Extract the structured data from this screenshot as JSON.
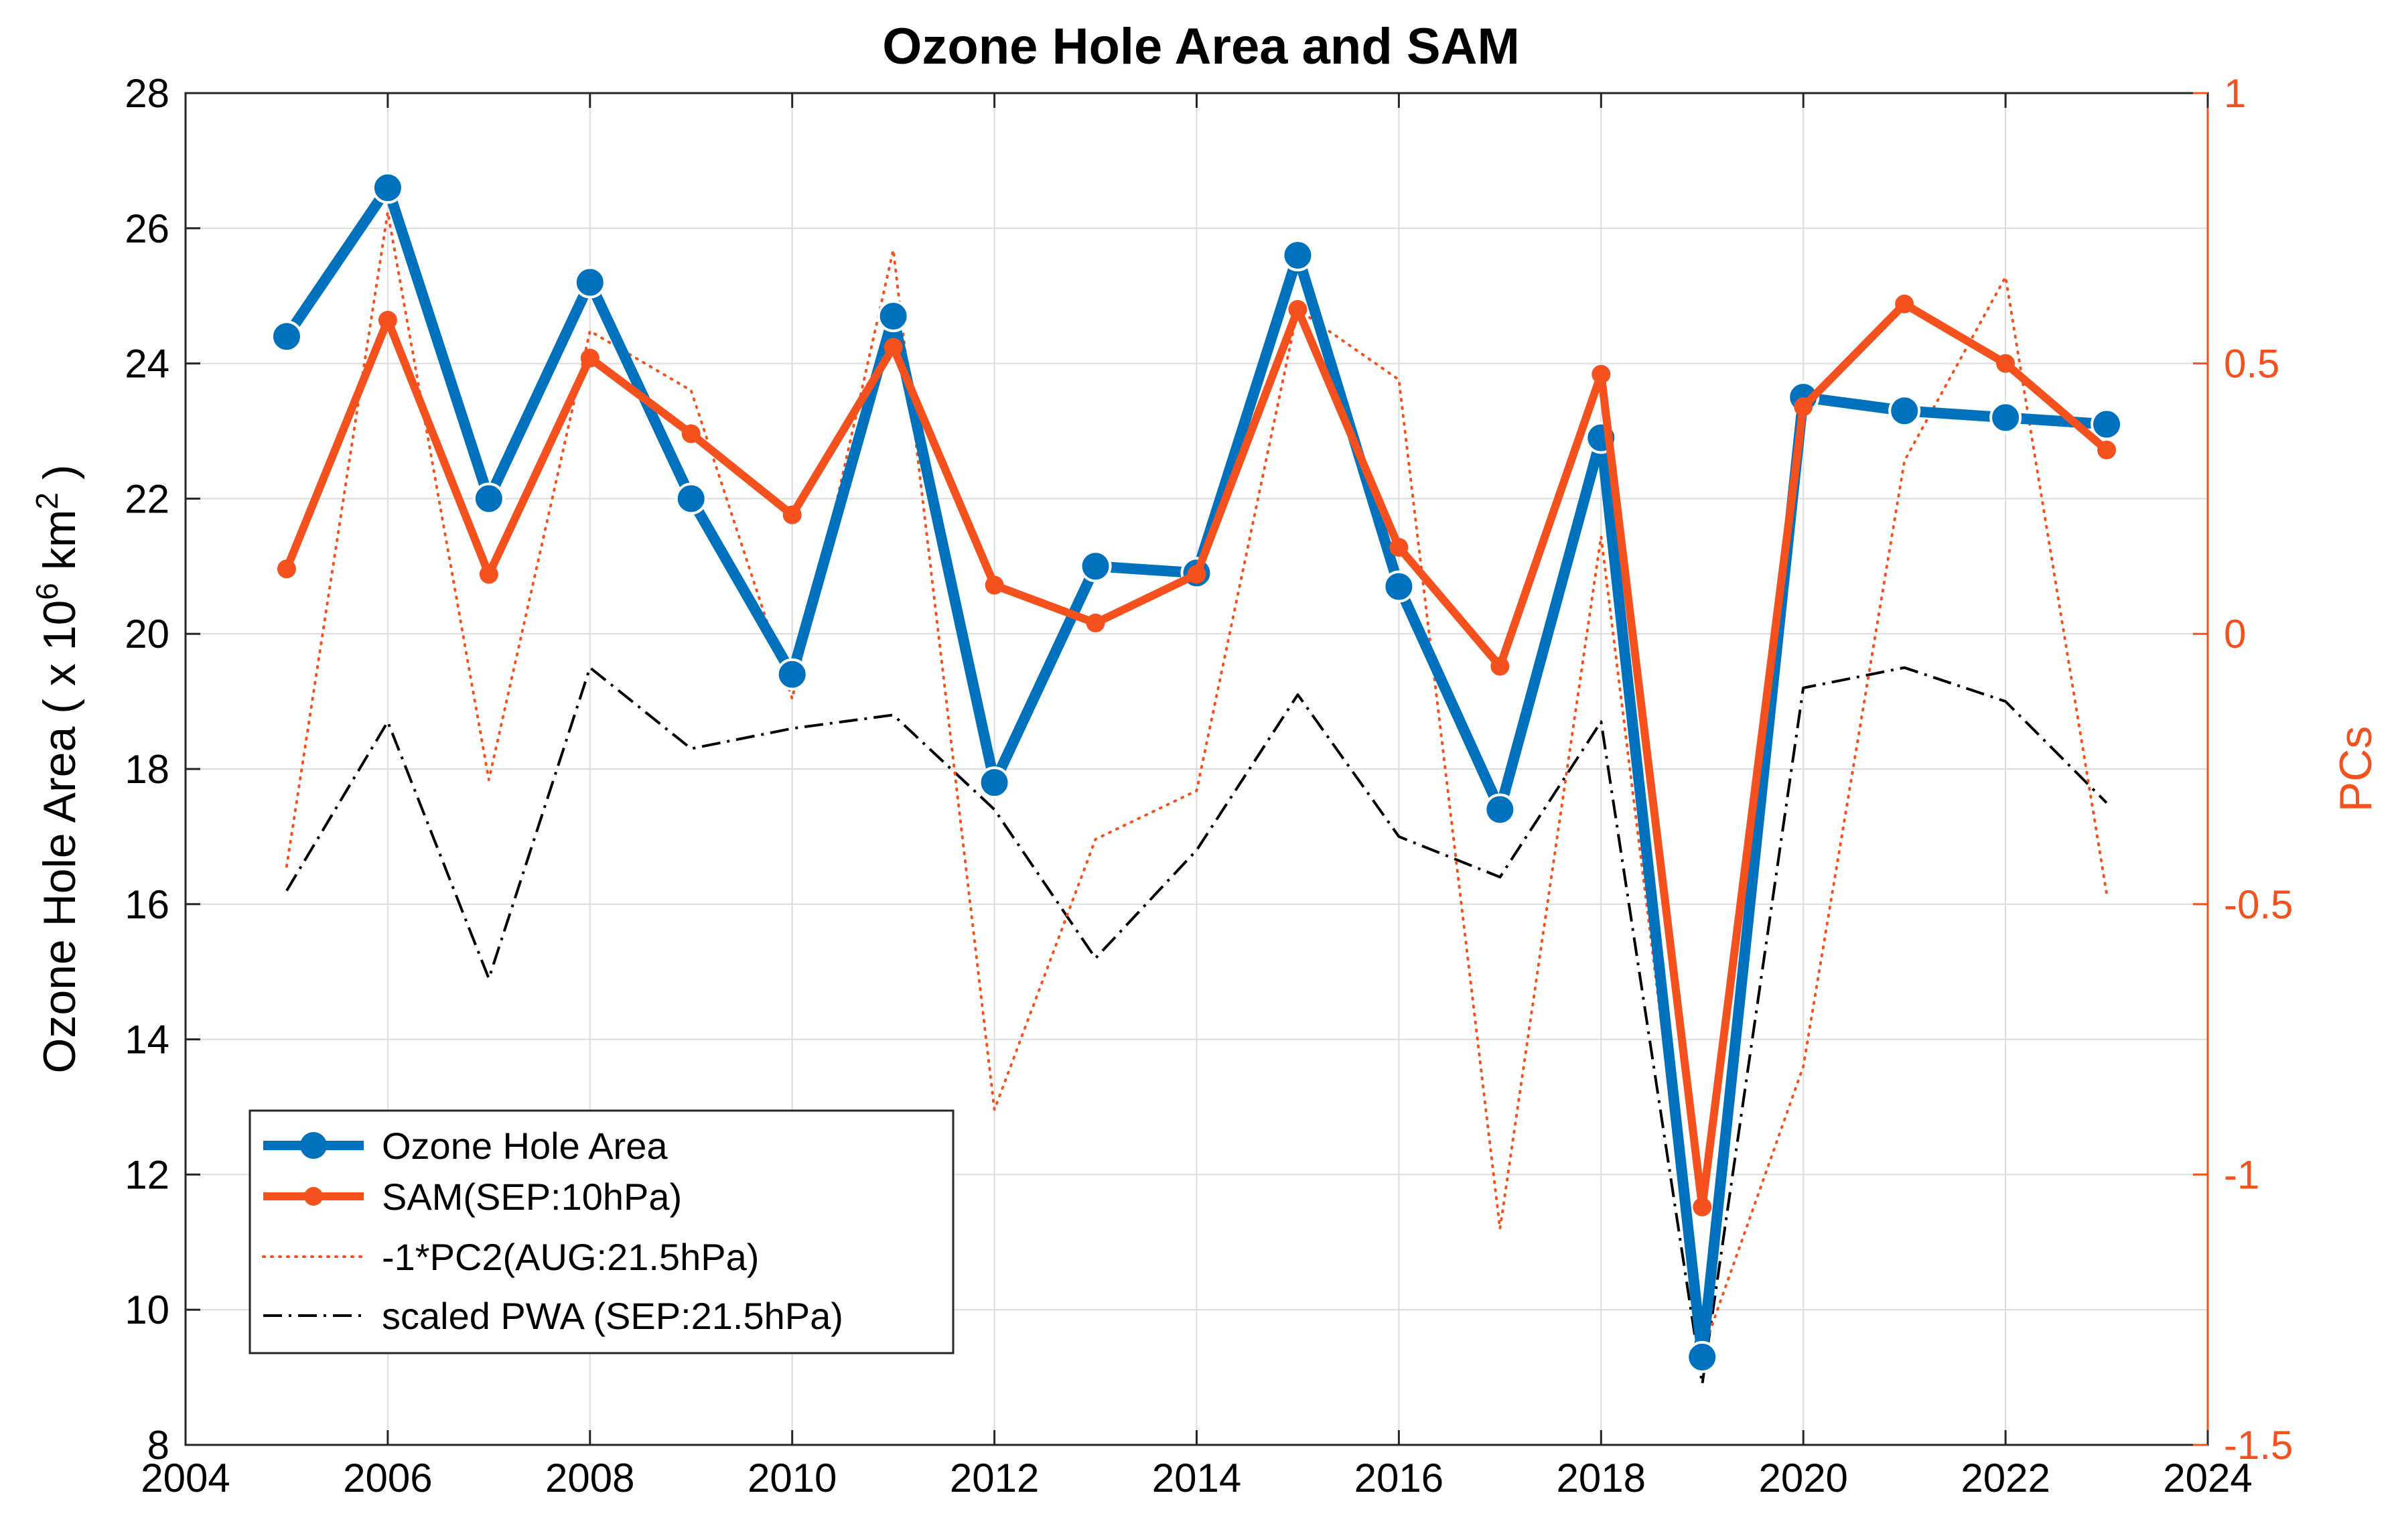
{
  "chart_data": {
    "type": "line",
    "title": "Ozone Hole Area and SAM",
    "xlabel": "",
    "ylabel_left": {
      "prefix": "Ozone Hole Area ( x 10",
      "superscript_1": "6",
      "middle": " km",
      "superscript_2": "2",
      "suffix": " )"
    },
    "ylabel_right": "PCs",
    "xlim": [
      2004,
      2024
    ],
    "ylim_left": [
      8,
      28
    ],
    "ylim_right": [
      -1.5,
      1
    ],
    "x_ticks": [
      2004,
      2006,
      2008,
      2010,
      2012,
      2014,
      2016,
      2018,
      2020,
      2022,
      2024
    ],
    "x_tick_labels": [
      "2004",
      "2006",
      "2008",
      "2010",
      "2012",
      "2014",
      "2016",
      "2018",
      "2020",
      "2022",
      "2024"
    ],
    "y_left_ticks": [
      8,
      10,
      12,
      14,
      16,
      18,
      20,
      22,
      24,
      26,
      28
    ],
    "y_left_tick_labels": [
      "8",
      "10",
      "12",
      "14",
      "16",
      "18",
      "20",
      "22",
      "24",
      "26",
      "28"
    ],
    "y_right_ticks": [
      -1.5,
      -1,
      -0.5,
      0,
      0.5,
      1
    ],
    "y_right_tick_labels": [
      "-1.5",
      "-1",
      "-0.5",
      "0",
      "0.5",
      "1"
    ],
    "grid": true,
    "legend_location": "bottom-left",
    "x": [
      2005,
      2006,
      2007,
      2008,
      2009,
      2010,
      2011,
      2012,
      2013,
      2014,
      2015,
      2016,
      2017,
      2018,
      2019,
      2020,
      2021,
      2022,
      2023
    ],
    "series": [
      {
        "name": "Ozone Hole Area",
        "axis": "left",
        "style": "solid-thick-marker",
        "color": "#0072BD",
        "values": [
          24.4,
          26.6,
          22.0,
          25.2,
          22.0,
          19.4,
          24.7,
          17.8,
          21.0,
          20.9,
          25.6,
          20.7,
          17.4,
          22.9,
          9.3,
          23.5,
          23.3,
          23.2,
          23.1
        ]
      },
      {
        "name": "SAM(SEP:10hPa)",
        "axis": "right",
        "style": "solid-marker",
        "color": "#F4511E",
        "values": [
          0.12,
          0.58,
          0.11,
          0.51,
          0.37,
          0.22,
          0.53,
          0.09,
          0.02,
          0.11,
          0.6,
          0.16,
          -0.06,
          0.48,
          -1.06,
          0.42,
          0.61,
          0.5,
          0.34
        ]
      },
      {
        "name": "-1*PC2(AUG:21.5hPa)",
        "axis": "right",
        "style": "dotted",
        "color": "#F4511E",
        "values": [
          -0.43,
          0.78,
          -0.27,
          0.56,
          0.45,
          -0.12,
          0.71,
          -0.88,
          -0.38,
          -0.29,
          0.6,
          0.47,
          -1.1,
          0.18,
          -1.33,
          -0.8,
          0.32,
          0.66,
          -0.48
        ]
      },
      {
        "name": "scaled PWA (SEP:21.5hPa)",
        "axis": "left",
        "style": "dashdot",
        "color": "#000000",
        "values": [
          16.2,
          18.7,
          14.9,
          19.5,
          18.3,
          18.6,
          18.8,
          17.4,
          15.2,
          16.8,
          19.1,
          17.0,
          16.4,
          18.7,
          8.9,
          19.2,
          19.5,
          19.0,
          17.5
        ]
      }
    ]
  }
}
